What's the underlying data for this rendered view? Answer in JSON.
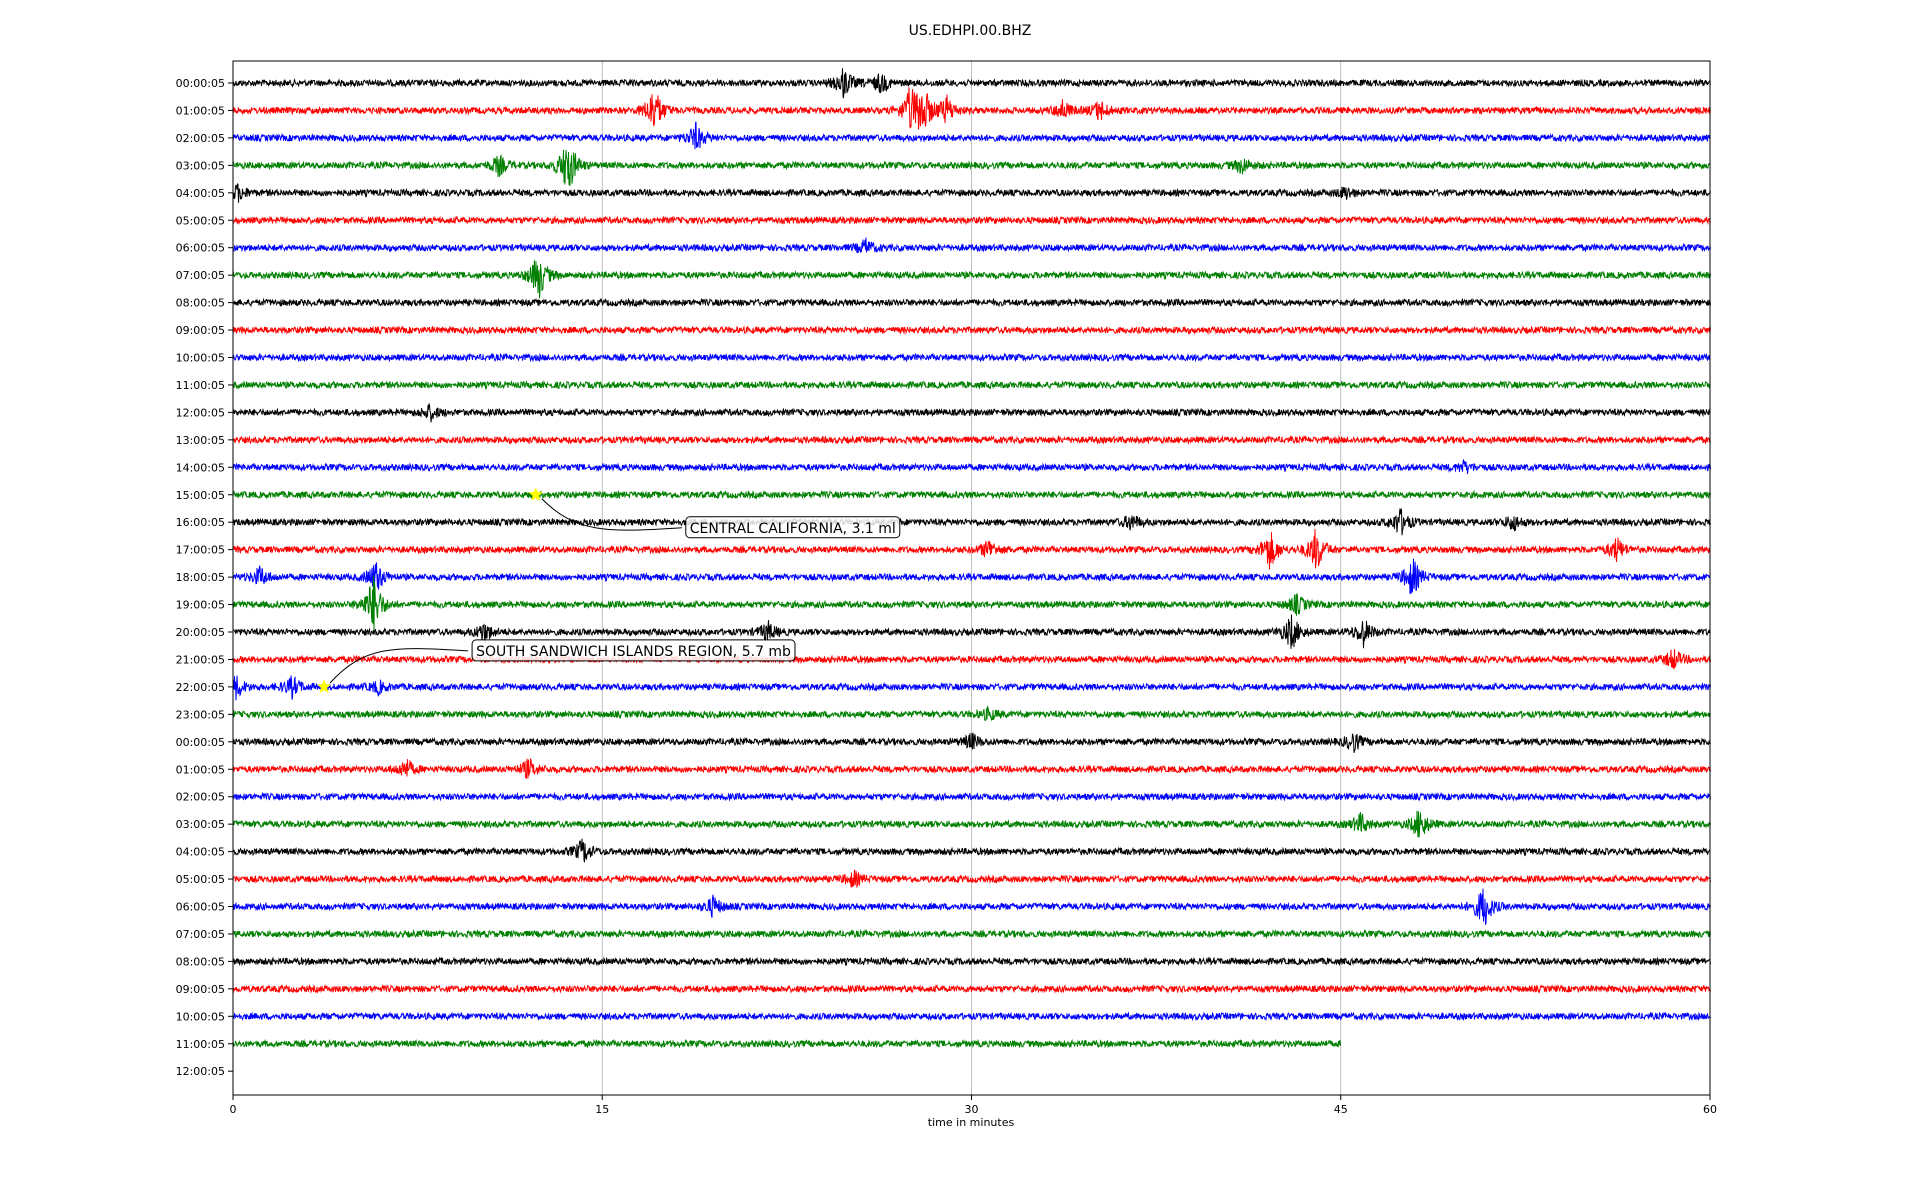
{
  "chart_data": {
    "type": "line",
    "title": "US.EDHPI.00.BHZ",
    "xlabel": "time in minutes",
    "ylabel": "",
    "xlim": [
      0,
      60
    ],
    "x_ticks": [
      "0",
      "15",
      "30",
      "45",
      "60"
    ],
    "x_tick_values": [
      0,
      15,
      30,
      45,
      60
    ],
    "grid": "vertical",
    "row_labels": [
      "00:00:05",
      "01:00:05",
      "02:00:05",
      "03:00:05",
      "04:00:05",
      "05:00:05",
      "06:00:05",
      "07:00:05",
      "08:00:05",
      "09:00:05",
      "10:00:05",
      "11:00:05",
      "12:00:05",
      "13:00:05",
      "14:00:05",
      "15:00:05",
      "16:00:05",
      "17:00:05",
      "18:00:05",
      "19:00:05",
      "20:00:05",
      "21:00:05",
      "22:00:05",
      "23:00:05",
      "00:00:05",
      "01:00:05",
      "02:00:05",
      "03:00:05",
      "04:00:05",
      "05:00:05",
      "06:00:05",
      "07:00:05",
      "08:00:05",
      "09:00:05",
      "10:00:05",
      "11:00:05",
      "12:00:05"
    ],
    "row_colors": [
      "#000000",
      "#ff0000",
      "#0000ff",
      "#008000"
    ],
    "last_trace_end_minute": 45,
    "events": [
      {
        "row": 0,
        "minute": 24.8,
        "amp": 0.8
      },
      {
        "row": 0,
        "minute": 26.3,
        "amp": 0.5
      },
      {
        "row": 1,
        "minute": 17.1,
        "amp": 1.2
      },
      {
        "row": 1,
        "minute": 27.5,
        "amp": 1.0
      },
      {
        "row": 1,
        "minute": 28.0,
        "amp": 1.3
      },
      {
        "row": 1,
        "minute": 29.0,
        "amp": 0.7
      },
      {
        "row": 1,
        "minute": 33.7,
        "amp": 0.5
      },
      {
        "row": 1,
        "minute": 35.2,
        "amp": 0.5
      },
      {
        "row": 2,
        "minute": 18.8,
        "amp": 0.7
      },
      {
        "row": 3,
        "minute": 13.6,
        "amp": 1.5
      },
      {
        "row": 3,
        "minute": 10.8,
        "amp": 0.5
      },
      {
        "row": 3,
        "minute": 41.0,
        "amp": 0.4
      },
      {
        "row": 4,
        "minute": 0.2,
        "amp": 0.4
      },
      {
        "row": 4,
        "minute": 45.2,
        "amp": 0.3
      },
      {
        "row": 6,
        "minute": 25.7,
        "amp": 0.4
      },
      {
        "row": 7,
        "minute": 12.4,
        "amp": 1.2
      },
      {
        "row": 12,
        "minute": 8.0,
        "amp": 0.4
      },
      {
        "row": 14,
        "minute": 50.0,
        "amp": 0.3
      },
      {
        "row": 16,
        "minute": 47.4,
        "amp": 0.7
      },
      {
        "row": 16,
        "minute": 36.5,
        "amp": 0.4
      },
      {
        "row": 16,
        "minute": 52.0,
        "amp": 0.4
      },
      {
        "row": 17,
        "minute": 30.7,
        "amp": 0.5
      },
      {
        "row": 17,
        "minute": 42.1,
        "amp": 1.0
      },
      {
        "row": 17,
        "minute": 44.0,
        "amp": 1.1
      },
      {
        "row": 17,
        "minute": 56.2,
        "amp": 0.6
      },
      {
        "row": 18,
        "minute": 1.1,
        "amp": 0.5
      },
      {
        "row": 18,
        "minute": 47.9,
        "amp": 1.0
      },
      {
        "row": 18,
        "minute": 5.8,
        "amp": 0.8
      },
      {
        "row": 19,
        "minute": 5.7,
        "amp": 1.5
      },
      {
        "row": 19,
        "minute": 43.2,
        "amp": 0.5
      },
      {
        "row": 20,
        "minute": 43.0,
        "amp": 0.9
      },
      {
        "row": 20,
        "minute": 45.9,
        "amp": 0.7
      },
      {
        "row": 20,
        "minute": 21.7,
        "amp": 0.5
      },
      {
        "row": 20,
        "minute": 10.2,
        "amp": 0.5
      },
      {
        "row": 21,
        "minute": 58.5,
        "amp": 0.5
      },
      {
        "row": 22,
        "minute": 0.1,
        "amp": 0.6
      },
      {
        "row": 22,
        "minute": 2.4,
        "amp": 0.5
      },
      {
        "row": 22,
        "minute": 5.9,
        "amp": 0.3
      },
      {
        "row": 23,
        "minute": 30.7,
        "amp": 0.3
      },
      {
        "row": 24,
        "minute": 45.5,
        "amp": 0.5
      },
      {
        "row": 24,
        "minute": 30.0,
        "amp": 0.4
      },
      {
        "row": 25,
        "minute": 7.0,
        "amp": 0.5
      },
      {
        "row": 25,
        "minute": 12.0,
        "amp": 0.5
      },
      {
        "row": 27,
        "minute": 45.8,
        "amp": 0.5
      },
      {
        "row": 27,
        "minute": 48.2,
        "amp": 0.8
      },
      {
        "row": 28,
        "minute": 14.2,
        "amp": 0.6
      },
      {
        "row": 29,
        "minute": 25.2,
        "amp": 0.4
      },
      {
        "row": 30,
        "minute": 50.8,
        "amp": 1.1
      },
      {
        "row": 30,
        "minute": 19.5,
        "amp": 0.5
      }
    ],
    "annotations": [
      {
        "label": "CENTRAL CALIFORNIA, 3.1 ml",
        "row": 15,
        "minute": 12.3
      },
      {
        "label": "SOUTH SANDWICH ISLANDS REGION, 5.7 mb",
        "row": 22,
        "minute": 3.7
      }
    ],
    "event_marker_color": "#ffff00"
  }
}
